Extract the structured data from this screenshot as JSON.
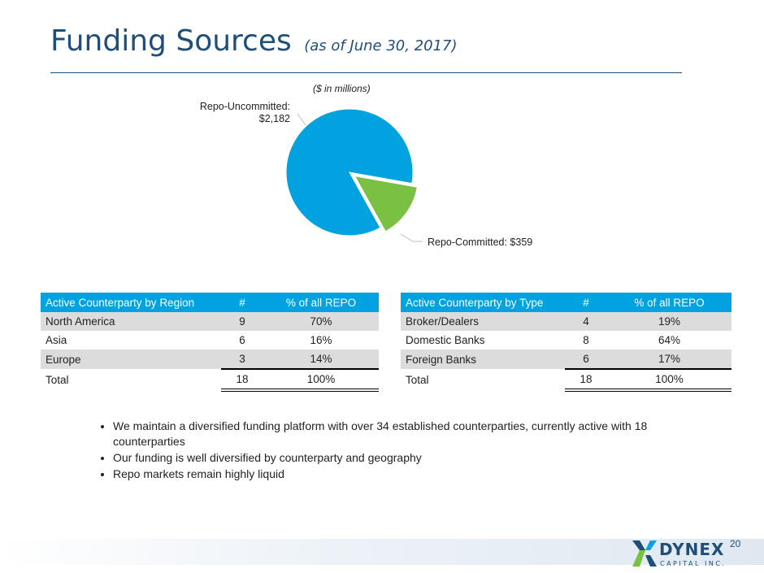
{
  "header": {
    "title": "Funding Sources",
    "subtitle": "(as of June 30, 2017)"
  },
  "chart_data": {
    "type": "pie",
    "title": "($ in millions)",
    "slices": [
      {
        "name": "Repo-Uncommitted",
        "label_line1": "Repo-Uncommitted:",
        "label_line2": "$2,182",
        "value": 2182,
        "color": "#00a3e0"
      },
      {
        "name": "Repo-Committed",
        "label": "Repo-Committed: $359",
        "value": 359,
        "color": "#7ac143"
      }
    ]
  },
  "region_table": {
    "headers": [
      "Active Counterparty by Region",
      "#",
      "% of all REPO"
    ],
    "rows": [
      [
        "North America",
        "9",
        "70%"
      ],
      [
        "Asia",
        "6",
        "16%"
      ],
      [
        "Europe",
        "3",
        "14%"
      ]
    ],
    "total": [
      "Total",
      "18",
      "100%"
    ]
  },
  "type_table": {
    "headers": [
      "Active Counterparty by Type",
      "#",
      "% of all REPO"
    ],
    "rows": [
      [
        "Broker/Dealers",
        "4",
        "19%"
      ],
      [
        "Domestic Banks",
        "8",
        "64%"
      ],
      [
        "Foreign Banks",
        "6",
        "17%"
      ]
    ],
    "total": [
      "Total",
      "18",
      "100%"
    ]
  },
  "bullets": [
    "We maintain a diversified funding platform with over 34 established counterparties, currently active with 18 counterparties",
    "Our funding is well diversified by counterparty and geography",
    "Repo markets remain highly liquid"
  ],
  "footer": {
    "page_number": "20",
    "logo_word": "DYNEX",
    "logo_sub": "CAPITAL INC."
  }
}
